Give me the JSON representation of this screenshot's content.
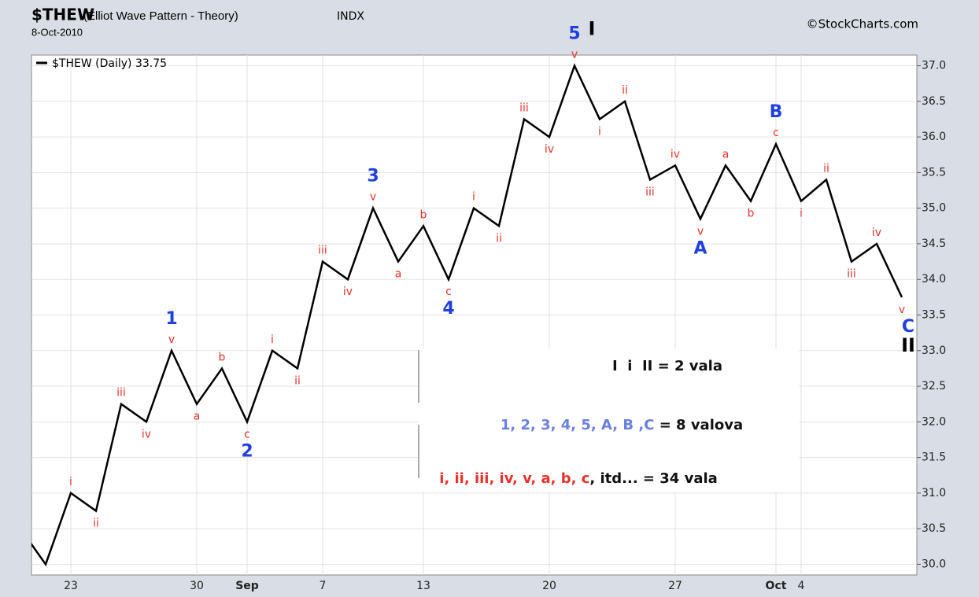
{
  "chart_data": {
    "type": "line",
    "title": "$THEW",
    "subtitle": "(Elliot Wave Pattern - Theory)",
    "exchange": "INDX",
    "date": "8-Oct-2010",
    "watermark": "©StockCharts.com",
    "categories": [
      null,
      null,
      "23",
      null,
      null,
      null,
      null,
      "30",
      null,
      "Sep",
      null,
      null,
      "7",
      null,
      null,
      null,
      "13",
      null,
      null,
      null,
      null,
      "20",
      null,
      null,
      null,
      null,
      "27",
      null,
      null,
      null,
      "Oct",
      "4",
      null,
      null,
      null,
      null
    ],
    "series": [
      {
        "name": "$THEW (Daily)",
        "color": "#000000",
        "values": [
          30.5,
          30.0,
          31.0,
          30.75,
          32.25,
          32.0,
          33.0,
          32.25,
          32.75,
          32.0,
          33.0,
          32.75,
          34.25,
          34.0,
          35.0,
          34.25,
          34.75,
          34.0,
          35.0,
          34.75,
          36.25,
          36.0,
          37.0,
          36.25,
          36.5,
          35.4,
          35.6,
          34.85,
          35.6,
          35.1,
          35.9,
          35.1,
          35.4,
          34.25,
          34.5,
          33.75
        ]
      }
    ],
    "ylim": [
      29.85,
      37.15
    ],
    "yticks": [
      {
        "value": 30,
        "label": "30.0"
      },
      {
        "value": 30.5,
        "label": "30.5"
      },
      {
        "value": 31,
        "label": "31.0"
      },
      {
        "value": 31.5,
        "label": "31.5"
      },
      {
        "value": 32,
        "label": "32.0"
      },
      {
        "value": 32.5,
        "label": "32.5"
      },
      {
        "value": 33,
        "label": "33.0"
      },
      {
        "value": 33.5,
        "label": "33.5"
      },
      {
        "value": 34,
        "label": "34.0"
      },
      {
        "value": 34.5,
        "label": "34.5"
      },
      {
        "value": 35,
        "label": "35.0"
      },
      {
        "value": 35.5,
        "label": "35.5"
      },
      {
        "value": 36,
        "label": "36.0"
      },
      {
        "value": 36.5,
        "label": "36.5"
      },
      {
        "value": 37,
        "label": "37.0"
      }
    ],
    "grid": true,
    "minor_labels": [
      {
        "text": "i",
        "index": 2,
        "position": "above"
      },
      {
        "text": "ii",
        "index": 3,
        "position": "below"
      },
      {
        "text": "iii",
        "index": 4,
        "position": "above"
      },
      {
        "text": "iv",
        "index": 5,
        "position": "below"
      },
      {
        "text": "v",
        "index": 6,
        "position": "above"
      },
      {
        "text": "a",
        "index": 7,
        "position": "below"
      },
      {
        "text": "b",
        "index": 8,
        "position": "above"
      },
      {
        "text": "c",
        "index": 9,
        "position": "below"
      },
      {
        "text": "i",
        "index": 10,
        "position": "above"
      },
      {
        "text": "ii",
        "index": 11,
        "position": "below"
      },
      {
        "text": "iii",
        "index": 12,
        "position": "above"
      },
      {
        "text": "iv",
        "index": 13,
        "position": "below"
      },
      {
        "text": "v",
        "index": 14,
        "position": "above"
      },
      {
        "text": "a",
        "index": 15,
        "position": "below"
      },
      {
        "text": "b",
        "index": 16,
        "position": "above"
      },
      {
        "text": "c",
        "index": 17,
        "position": "below"
      },
      {
        "text": "i",
        "index": 18,
        "position": "above"
      },
      {
        "text": "ii",
        "index": 19,
        "position": "below"
      },
      {
        "text": "iii",
        "index": 20,
        "position": "above"
      },
      {
        "text": "iv",
        "index": 21,
        "position": "below"
      },
      {
        "text": "v",
        "index": 22,
        "position": "above"
      },
      {
        "text": "i",
        "index": 23,
        "position": "below"
      },
      {
        "text": "ii",
        "index": 24,
        "position": "above"
      },
      {
        "text": "iii",
        "index": 25,
        "position": "below"
      },
      {
        "text": "iv",
        "index": 26,
        "position": "above"
      },
      {
        "text": "v",
        "index": 27,
        "position": "below"
      },
      {
        "text": "a",
        "index": 28,
        "position": "above"
      },
      {
        "text": "b",
        "index": 29,
        "position": "below"
      },
      {
        "text": "c",
        "index": 30,
        "position": "above"
      },
      {
        "text": "i",
        "index": 31,
        "position": "below"
      },
      {
        "text": "ii",
        "index": 32,
        "position": "above"
      },
      {
        "text": "iii",
        "index": 33,
        "position": "below"
      },
      {
        "text": "iv",
        "index": 34,
        "position": "above"
      },
      {
        "text": "v",
        "index": 35,
        "position": "below"
      }
    ],
    "minor_color": "#e8322a",
    "major_labels": [
      {
        "text": "1",
        "index": 6,
        "position": "above"
      },
      {
        "text": "2",
        "index": 9,
        "position": "below"
      },
      {
        "text": "3",
        "index": 14,
        "position": "above"
      },
      {
        "text": "4",
        "index": 17,
        "position": "below"
      },
      {
        "text": "5",
        "index": 22,
        "position": "above"
      },
      {
        "text": "A",
        "index": 27,
        "position": "below"
      },
      {
        "text": "B",
        "index": 30,
        "position": "above"
      },
      {
        "text": "C",
        "index": 35,
        "position": "below"
      }
    ],
    "major_color": "#1f3fe0",
    "degree_labels": [
      {
        "text": "I",
        "index": 22,
        "position": "above"
      },
      {
        "text": "II",
        "index": 35,
        "position": "below"
      }
    ],
    "degree_color": "#000000",
    "box": [
      [
        {
          "text": "I  i  II = 2 vala",
          "color": "#111111"
        }
      ],
      [
        {
          "text": "1, 2, 3, 4, 5, A, B ,C",
          "color": "#6b7fe0"
        },
        {
          "text": " = 8 valova",
          "color": "#111111"
        }
      ],
      [
        {
          "text": "i, ii, iii, iv, v, a, b, c",
          "color": "#e8322a"
        },
        {
          "text": ", itd... = 34 vala",
          "color": "#111111"
        }
      ]
    ]
  }
}
